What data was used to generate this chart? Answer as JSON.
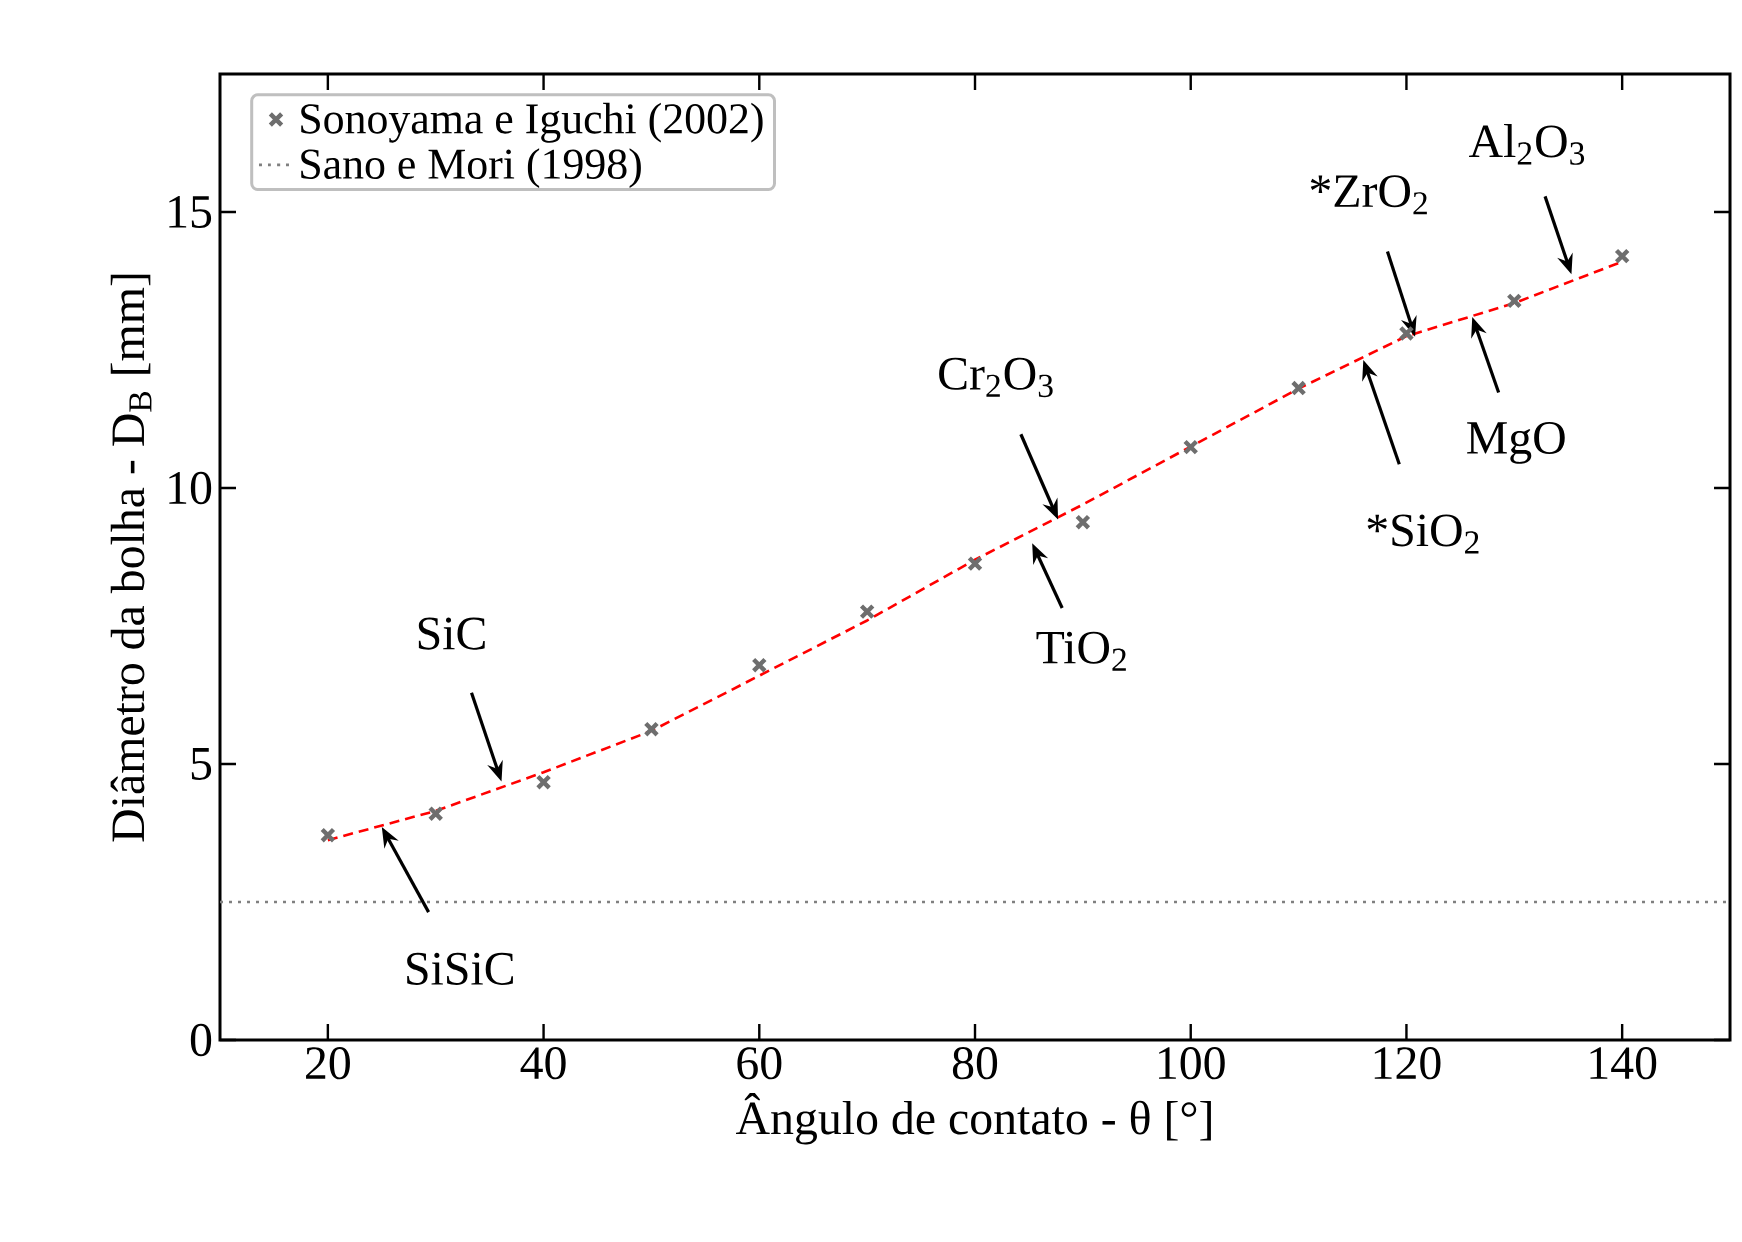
{
  "chart_data": {
    "type": "scatter",
    "xlabel": "Ângulo de contato - θ [°]",
    "ylabel": "Diâmetro da bolha - D$_{B}$ [mm]",
    "xlim": [
      10,
      150
    ],
    "ylim": [
      0,
      17.5
    ],
    "xticks": [
      20,
      40,
      60,
      80,
      100,
      120,
      140
    ],
    "yticks": [
      0,
      5,
      10,
      15
    ],
    "grid": false,
    "legend": "top left",
    "series": [
      {
        "name": "Sonoyama e Iguchi (2002)",
        "marker": "cross",
        "color": "#6e6e6e",
        "x": [
          20,
          30,
          40,
          50,
          60,
          70,
          80,
          90,
          100,
          110,
          120,
          130,
          140
        ],
        "values": [
          3.71,
          4.1,
          4.67,
          5.63,
          6.79,
          7.76,
          8.63,
          9.38,
          10.74,
          11.81,
          12.8,
          13.39,
          14.2
        ]
      },
      {
        "type": "line",
        "marker": "none",
        "line_style": "dashed",
        "color": "#ff0000",
        "x": [
          20,
          30,
          40,
          50,
          60,
          70,
          80,
          90,
          100,
          110,
          120,
          130,
          140
        ],
        "values": [
          3.62,
          4.15,
          4.85,
          5.6,
          6.6,
          7.6,
          8.7,
          9.7,
          10.75,
          11.8,
          12.75,
          13.35,
          14.1
        ]
      }
    ],
    "ref_lines": [
      {
        "axis": "y",
        "value": 2.5,
        "label": "Sano e Mori (1998)",
        "color": "#808080",
        "line_style": "dotted"
      }
    ],
    "annotations": [
      {
        "text": "SiSiC",
        "x": 25,
        "y": 3.86
      },
      {
        "text": "SiC",
        "x": 36.1,
        "y": 4.68
      },
      {
        "text": "TiO$_{2}$",
        "x": 85.3,
        "y": 9.0
      },
      {
        "text": "Cr$_{2}$O$_{3}$",
        "x": 87.7,
        "y": 9.43
      },
      {
        "text": "*SiO$_{2}$",
        "x": 116,
        "y": 12.32
      },
      {
        "text": "*ZrO$_{2}$",
        "x": 120.8,
        "y": 12.74
      },
      {
        "text": "MgO",
        "x": 126.1,
        "y": 13.1
      },
      {
        "text": "Al$_{2}$O$_{3}$",
        "x": 135.3,
        "y": 13.87
      }
    ]
  }
}
